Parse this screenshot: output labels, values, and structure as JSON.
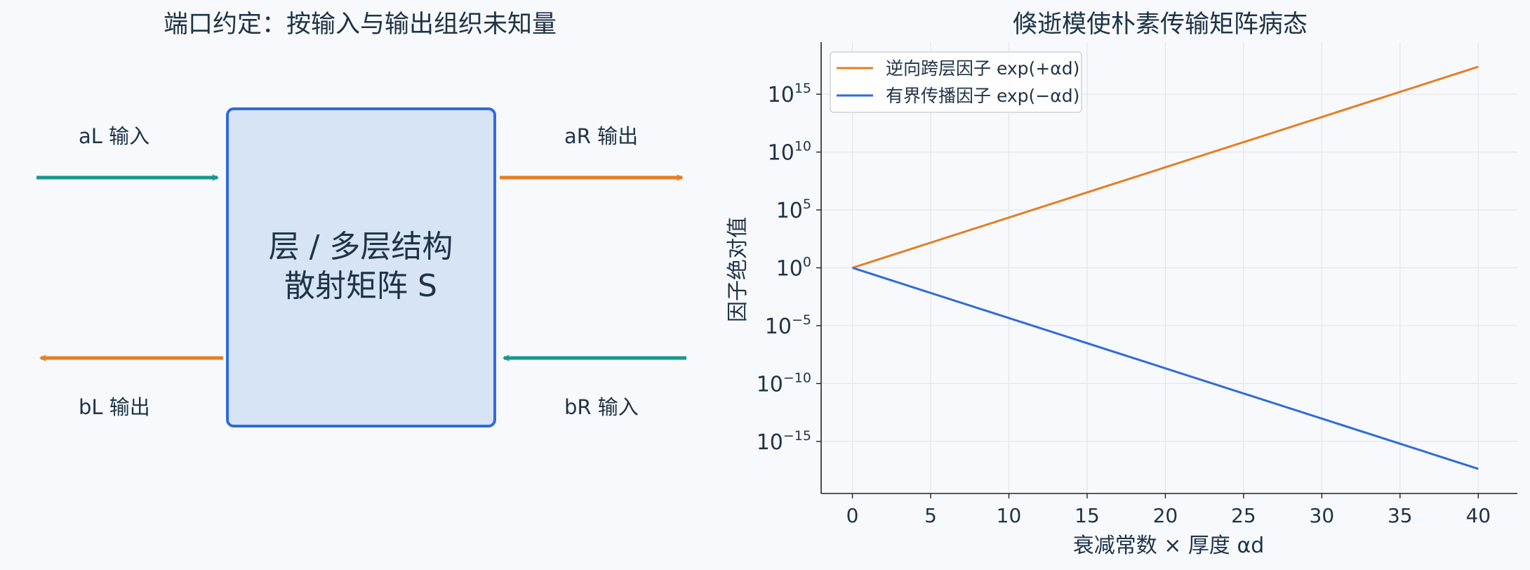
{
  "colors": {
    "background": "#f7f9fc",
    "text": "#1f3347",
    "teal": "#16988a",
    "orange": "#e67e22",
    "blue": "#2f6bd9",
    "box_fill": "#d6e4f5",
    "box_stroke": "#2f6bd9",
    "grid": "#e3e6ea",
    "axis": "#222222"
  },
  "diagram": {
    "title": "端口约定：按输入与输出组织未知量",
    "box_line1": "层 / 多层结构",
    "box_line2": "散射矩阵 S",
    "port_aL": "aL  输入",
    "port_aR": "aR  输出",
    "port_bL": "bL  输出",
    "port_bR": "bR  输入"
  },
  "chart_data": {
    "type": "line",
    "title": "倏逝模使朴素传输矩阵病态",
    "xlabel": "衰减常数 × 厚度  αd",
    "ylabel": "因子绝对值",
    "xlim": [
      -2,
      42.5
    ],
    "ylim_log10": [
      -19.5,
      19.5
    ],
    "y_scale": "log",
    "xticks": [
      0,
      5,
      10,
      15,
      20,
      25,
      30,
      35,
      40
    ],
    "yticks_exp": [
      -15,
      -10,
      -5,
      0,
      5,
      10,
      15
    ],
    "grid": true,
    "legend_position": "top-left",
    "series": [
      {
        "name": "逆向跨层因子 exp(+αd)",
        "color": "#e67e22",
        "x": [
          0,
          40
        ],
        "y_log10": [
          0,
          17.37
        ]
      },
      {
        "name": "有界传播因子 exp(−αd)",
        "color": "#2f6bd9",
        "x": [
          0,
          40
        ],
        "y_log10": [
          0,
          -17.37
        ]
      }
    ]
  }
}
